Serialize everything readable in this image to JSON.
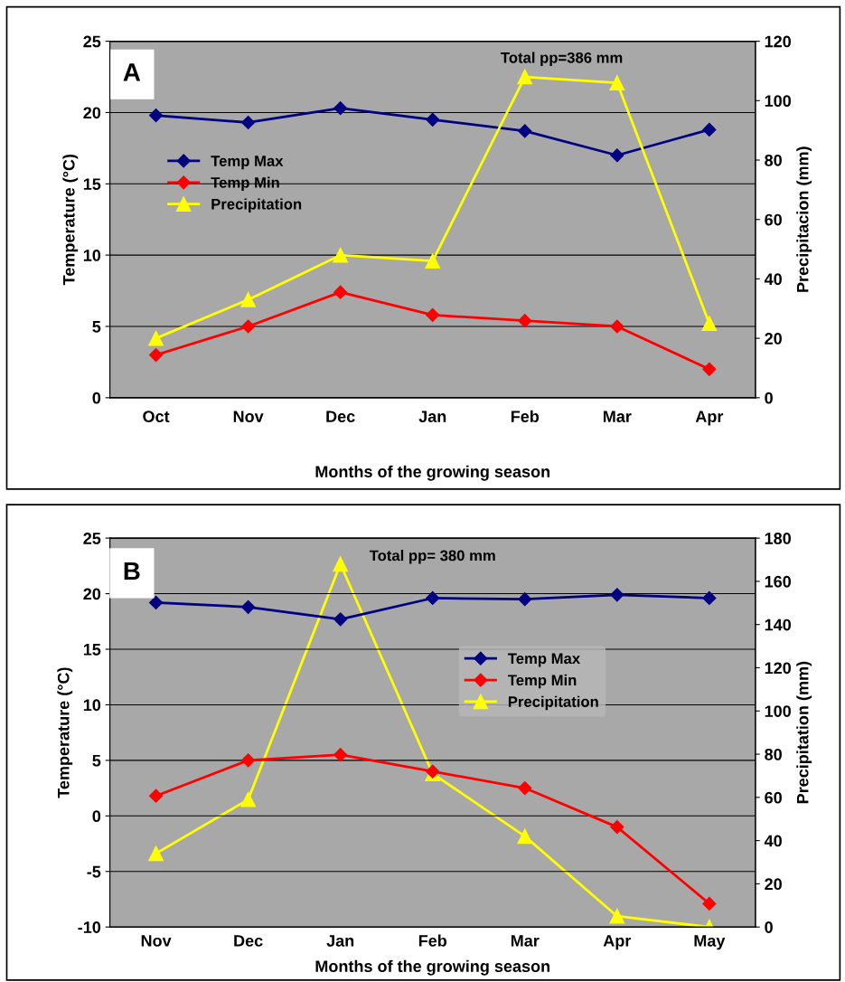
{
  "chart_data": [
    {
      "type": "line",
      "xlabel": "Months of the growing season",
      "ylabel": "Temperature (°C)",
      "y2label": "Precipitacion (mm)",
      "annotations": [
        "A",
        "Total pp=386 mm"
      ],
      "categories": [
        "Oct",
        "Nov",
        "Dec",
        "Jan",
        "Feb",
        "Mar",
        "Apr"
      ],
      "series": [
        {
          "name": "Temp Max",
          "color": "#000080",
          "marker": "diamond",
          "values": [
            19.8,
            19.3,
            20.3,
            19.5,
            18.7,
            17.0,
            18.8
          ]
        },
        {
          "name": "Temp Min",
          "color": "#ff0000",
          "marker": "diamond",
          "values": [
            3.0,
            5.0,
            7.4,
            5.8,
            5.4,
            5.0,
            2.0
          ]
        },
        {
          "name": "Precipitation",
          "color": "#ffff00",
          "marker": "triangle",
          "axis": "y2",
          "values": [
            20,
            33,
            48,
            46,
            108,
            106,
            25
          ]
        }
      ],
      "ylim": [
        0,
        25
      ],
      "yticks": [
        0,
        5,
        10,
        15,
        20,
        25
      ],
      "y2lim": [
        0,
        120
      ],
      "y2ticks": [
        0,
        20,
        40,
        60,
        80,
        100,
        120
      ],
      "grid": "y",
      "legend": "center left"
    },
    {
      "type": "line",
      "xlabel": "Months of the growing season",
      "ylabel": "Temperature (°C)",
      "y2label": "Precipitation (mm)",
      "annotations": [
        "B",
        "Total pp= 380 mm"
      ],
      "categories": [
        "Nov",
        "Dec",
        "Jan",
        "Feb",
        "Mar",
        "Apr",
        "May"
      ],
      "series": [
        {
          "name": "Temp Max",
          "color": "#000080",
          "marker": "diamond",
          "values": [
            19.2,
            18.8,
            17.7,
            19.6,
            19.5,
            19.9,
            19.6
          ]
        },
        {
          "name": "Temp Min",
          "color": "#ff0000",
          "marker": "diamond",
          "values": [
            1.8,
            5.0,
            5.5,
            4.0,
            2.5,
            -1.0,
            -7.9
          ]
        },
        {
          "name": "Precipitation",
          "color": "#ffff00",
          "marker": "triangle",
          "axis": "y2",
          "values": [
            34,
            59,
            168,
            71,
            42,
            5,
            0
          ]
        }
      ],
      "ylim": [
        -10,
        25
      ],
      "yticks": [
        -10,
        -5,
        0,
        5,
        10,
        15,
        20,
        25
      ],
      "y2lim": [
        0,
        180
      ],
      "y2ticks": [
        0,
        20,
        40,
        60,
        80,
        100,
        120,
        140,
        160,
        180
      ],
      "grid": "y",
      "legend": "center right"
    }
  ]
}
